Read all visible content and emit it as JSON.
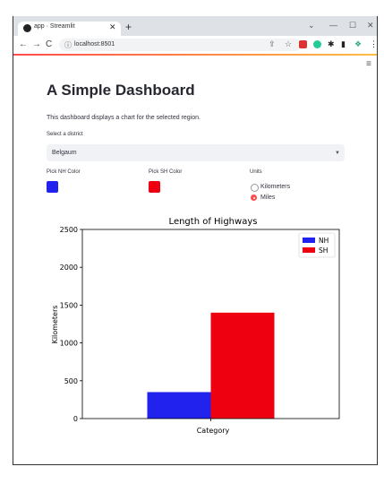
{
  "browser": {
    "tab_title": "app · Streamlit",
    "url": "localhost:8501"
  },
  "app": {
    "title": "A Simple Dashboard",
    "description": "This dashboard displays a chart for the selected region.",
    "district_label": "Select a district",
    "district_value": "Belgaum",
    "nh_color_label": "Pick NH Color",
    "nh_color": "#2222ee",
    "sh_color_label": "Pick SH Color",
    "sh_color": "#ee0011",
    "units_label": "Units",
    "units_options": [
      "Kilometers",
      "Miles"
    ],
    "units_selected": "Miles"
  },
  "chart_data": {
    "type": "bar",
    "title": "Length of Highways",
    "xlabel": "Category",
    "ylabel": "Kilometers",
    "ylim": [
      0,
      2500
    ],
    "yticks": [
      0,
      500,
      1000,
      1500,
      2000,
      2500
    ],
    "categories": [
      ""
    ],
    "series": [
      {
        "name": "NH",
        "values": [
          350
        ],
        "color": "#2222ee"
      },
      {
        "name": "SH",
        "values": [
          1400
        ],
        "color": "#ee0011"
      }
    ],
    "legend": "top-right"
  }
}
